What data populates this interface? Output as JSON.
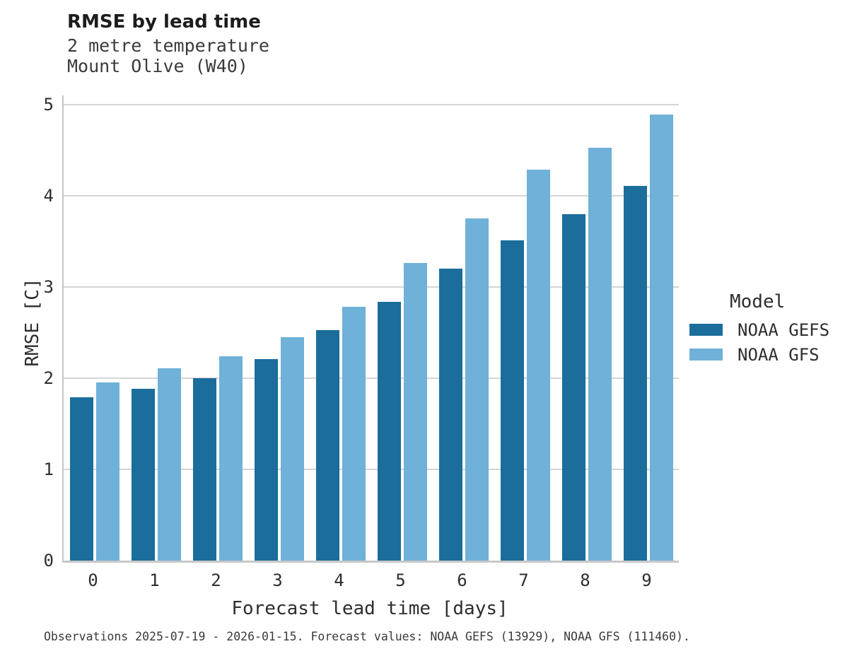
{
  "header": {
    "title": "RMSE by lead time",
    "subtitle_line1": "2 metre temperature",
    "subtitle_line2": "Mount Olive (W40)"
  },
  "legend": {
    "title": "Model",
    "entries": [
      {
        "label": "NOAA GEFS",
        "color": "#1b6d9b"
      },
      {
        "label": "NOAA GFS",
        "color": "#6fb1d8"
      }
    ]
  },
  "footer": {
    "caption": "Observations 2025-07-19 - 2026-01-15. Forecast values: NOAA GEFS (13929), NOAA GFS (111460)."
  },
  "colors": {
    "series_dark": "#1b6d9b",
    "series_light": "#6fb1d8",
    "gridline": "#d5d5d5",
    "axis_spine": "#c7c7c7",
    "text": "#2e2e2e"
  },
  "chart_data": {
    "type": "bar",
    "title": "RMSE by lead time",
    "subtitle": "2 metre temperature — Mount Olive (W40)",
    "xlabel": "Forecast lead time [days]",
    "ylabel": "RMSE [C]",
    "categories": [
      "0",
      "1",
      "2",
      "3",
      "4",
      "5",
      "6",
      "7",
      "8",
      "9"
    ],
    "series": [
      {
        "name": "NOAA GEFS",
        "color": "#1b6d9b",
        "values": [
          1.79,
          1.88,
          2.0,
          2.21,
          2.53,
          2.84,
          3.2,
          3.51,
          3.8,
          4.11
        ]
      },
      {
        "name": "NOAA GFS",
        "color": "#6fb1d8",
        "values": [
          1.95,
          2.11,
          2.24,
          2.45,
          2.78,
          3.26,
          3.75,
          4.29,
          4.53,
          4.89
        ]
      }
    ],
    "ylim": [
      0,
      5.1
    ],
    "yticks": [
      0,
      1,
      2,
      3,
      4,
      5
    ],
    "grid": true,
    "legend_position": "right"
  }
}
